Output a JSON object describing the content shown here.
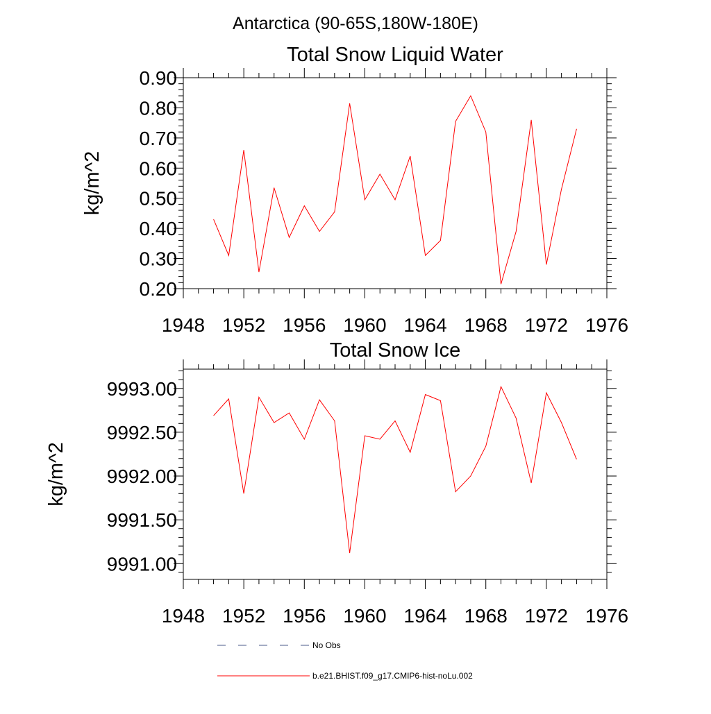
{
  "figure_title": "Antarctica (90-65S,180W-180E)",
  "chart_data": [
    {
      "type": "line",
      "title": "Total Snow Liquid Water",
      "xlabel": "",
      "ylabel": "kg/m^2",
      "xlim": [
        1948,
        1976
      ],
      "ylim": [
        0.2,
        0.9
      ],
      "x_ticks": [
        1948,
        1952,
        1956,
        1960,
        1964,
        1968,
        1972,
        1976
      ],
      "x_tick_labels": [
        "1948",
        "1952",
        "1956",
        "1960",
        "1964",
        "1968",
        "1972",
        "1976"
      ],
      "y_ticks": [
        0.2,
        0.3,
        0.4,
        0.5,
        0.6,
        0.7,
        0.8,
        0.9
      ],
      "y_tick_labels": [
        "0.20",
        "0.30",
        "0.40",
        "0.50",
        "0.60",
        "0.70",
        "0.80",
        "0.90"
      ],
      "grid": false,
      "x": [
        1950,
        1951,
        1952,
        1953,
        1954,
        1955,
        1956,
        1957,
        1958,
        1959,
        1960,
        1961,
        1962,
        1963,
        1964,
        1965,
        1966,
        1967,
        1968,
        1969,
        1970,
        1971,
        1972,
        1973,
        1974
      ],
      "series": [
        {
          "name": "b.e21.BHIST.f09_g17.CMIP6-hist-noLu.002",
          "color": "#ff0000",
          "values": [
            0.43,
            0.31,
            0.66,
            0.255,
            0.535,
            0.37,
            0.475,
            0.39,
            0.455,
            0.815,
            0.495,
            0.58,
            0.495,
            0.64,
            0.31,
            0.36,
            0.755,
            0.84,
            0.72,
            0.215,
            0.39,
            0.76,
            0.28,
            0.53,
            0.73
          ]
        }
      ]
    },
    {
      "type": "line",
      "title": "Total Snow Ice",
      "xlabel": "",
      "ylabel": "kg/m^2",
      "xlim": [
        1948,
        1976
      ],
      "ylim": [
        9990.82,
        9993.22
      ],
      "x_ticks": [
        1948,
        1952,
        1956,
        1960,
        1964,
        1968,
        1972,
        1976
      ],
      "x_tick_labels": [
        "1948",
        "1952",
        "1956",
        "1960",
        "1964",
        "1968",
        "1972",
        "1976"
      ],
      "y_ticks": [
        9991.0,
        9991.5,
        9992.0,
        9992.5,
        9993.0
      ],
      "y_tick_labels": [
        "9991.00",
        "9991.50",
        "9992.00",
        "9992.50",
        "9993.00"
      ],
      "grid": false,
      "x": [
        1950,
        1951,
        1952,
        1953,
        1954,
        1955,
        1956,
        1957,
        1958,
        1959,
        1960,
        1961,
        1962,
        1963,
        1964,
        1965,
        1966,
        1967,
        1968,
        1969,
        1970,
        1971,
        1972,
        1973,
        1974
      ],
      "series": [
        {
          "name": "b.e21.BHIST.f09_g17.CMIP6-hist-noLu.002",
          "color": "#ff0000",
          "values": [
            9992.69,
            9992.88,
            9991.8,
            9992.9,
            9992.61,
            9992.72,
            9992.42,
            9992.87,
            9992.63,
            9991.12,
            9992.46,
            9992.42,
            9992.63,
            9992.27,
            9992.93,
            9992.86,
            9991.82,
            9992.0,
            9992.34,
            9993.02,
            9992.66,
            9991.92,
            9992.95,
            9992.61,
            9992.19
          ]
        }
      ]
    }
  ],
  "legend": {
    "placement": "bottom",
    "items": [
      {
        "label": "No Obs",
        "color": "#4a5a8a",
        "style": "dashed"
      },
      {
        "label": "b.e21.BHIST.f09_g17.CMIP6-hist-noLu.002",
        "color": "#ff0000",
        "style": "solid"
      }
    ]
  }
}
